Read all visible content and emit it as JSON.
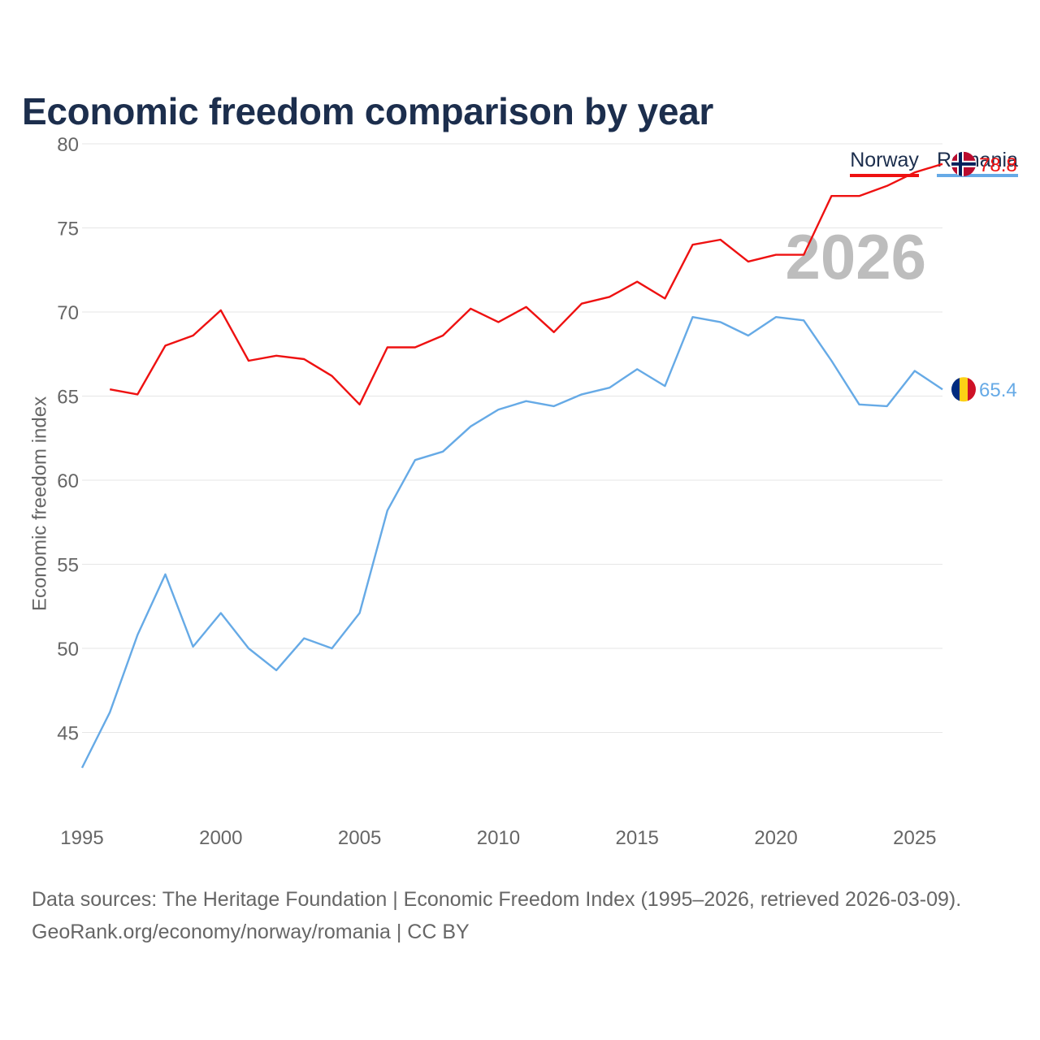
{
  "title": "Economic freedom comparison by year",
  "legend": [
    {
      "name": "Norway",
      "color": "#ee1111"
    },
    {
      "name": "Romania",
      "color": "#66aae6"
    }
  ],
  "source": {
    "line1": "Data sources: The Heritage Foundation | Economic Freedom Index (1995–2026, retrieved 2026-03-09).",
    "line2": "GeoRank.org/economy/norway/romania | CC BY"
  },
  "chart_data": {
    "type": "line",
    "title": "Economic freedom comparison by year",
    "xlabel": "",
    "ylabel": "Economic freedom index",
    "xlim": [
      1995,
      2026
    ],
    "ylim": [
      40,
      80
    ],
    "x_ticks": [
      1995,
      2000,
      2005,
      2010,
      2015,
      2020,
      2025
    ],
    "y_ticks": [
      45,
      50,
      55,
      60,
      65,
      70,
      75,
      80
    ],
    "grid": true,
    "watermark_year": "2026",
    "series": [
      {
        "name": "Norway",
        "color": "#ee1111",
        "end_label": "78.8",
        "flag": "norway",
        "x": [
          1996,
          1997,
          1998,
          1999,
          2000,
          2001,
          2002,
          2003,
          2004,
          2005,
          2006,
          2007,
          2008,
          2009,
          2010,
          2011,
          2012,
          2013,
          2014,
          2015,
          2016,
          2017,
          2018,
          2019,
          2020,
          2021,
          2022,
          2023,
          2024,
          2025,
          2026
        ],
        "values": [
          65.4,
          65.1,
          68.0,
          68.6,
          70.1,
          67.1,
          67.4,
          67.2,
          66.2,
          64.5,
          67.9,
          67.9,
          68.6,
          70.2,
          69.4,
          70.3,
          68.8,
          70.5,
          70.9,
          71.8,
          70.8,
          74.0,
          74.3,
          73.0,
          73.4,
          73.4,
          76.9,
          76.9,
          77.5,
          78.3,
          78.8
        ]
      },
      {
        "name": "Romania",
        "color": "#66aae6",
        "end_label": "65.4",
        "flag": "romania",
        "x": [
          1995,
          1996,
          1997,
          1998,
          1999,
          2000,
          2001,
          2002,
          2003,
          2004,
          2005,
          2006,
          2007,
          2008,
          2009,
          2010,
          2011,
          2012,
          2013,
          2014,
          2015,
          2016,
          2017,
          2018,
          2019,
          2020,
          2021,
          2022,
          2023,
          2024,
          2025,
          2026
        ],
        "values": [
          42.9,
          46.2,
          50.8,
          54.4,
          50.1,
          52.1,
          50.0,
          48.7,
          50.6,
          50.0,
          52.1,
          58.2,
          61.2,
          61.7,
          63.2,
          64.2,
          64.7,
          64.4,
          65.1,
          65.5,
          66.6,
          65.6,
          69.7,
          69.4,
          68.6,
          69.7,
          69.5,
          67.1,
          64.5,
          64.4,
          66.5,
          65.4
        ]
      }
    ]
  }
}
